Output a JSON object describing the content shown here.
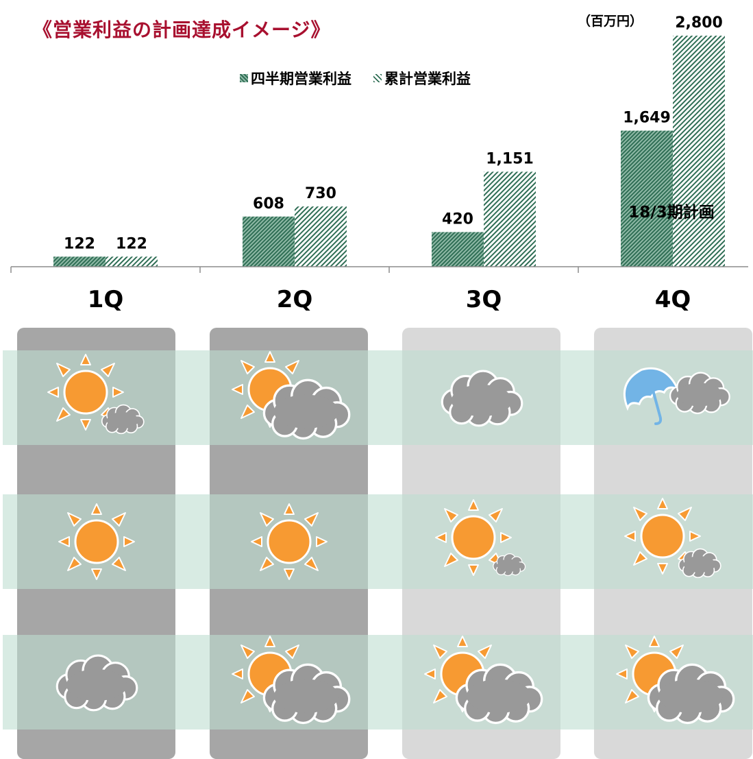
{
  "title": "《営業利益の計画達成イメージ》",
  "unit_label": "（百万円）",
  "legend": {
    "quarterly": "四半期営業利益",
    "cumulative": "累計営業利益"
  },
  "plan_label": "18/3期計画",
  "chart_data": {
    "type": "bar",
    "categories": [
      "1Q",
      "2Q",
      "3Q",
      "4Q"
    ],
    "series": [
      {
        "name": "四半期営業利益",
        "values": [
          122,
          608,
          420,
          1649
        ],
        "labels": [
          "122",
          "608",
          "420",
          "1,649"
        ]
      },
      {
        "name": "累計営業利益",
        "values": [
          122,
          730,
          1151,
          2800
        ],
        "labels": [
          "122",
          "730",
          "1,151",
          "2,800"
        ]
      }
    ],
    "ylim": [
      0,
      2800
    ]
  },
  "colors": {
    "title": "#a8102f",
    "column_dark": "#a6a6a6",
    "column_light": "#d9d9d9",
    "band": "#bedfd0",
    "sun": "#f79a32",
    "cloud": "#999999",
    "umbrella": "#72b4e6"
  },
  "weather_grid": [
    [
      "sun-small-cloud-icon",
      "sun-cloud-icon",
      "cloud-icon",
      "umbrella-cloud-icon"
    ],
    [
      "sun-icon",
      "sun-icon",
      "sun-tiny-cloud-icon",
      "sun-small-cloud-icon"
    ],
    [
      "cloud-icon",
      "sun-cloud-icon",
      "sun-cloud-icon",
      "sun-cloud-icon"
    ]
  ]
}
